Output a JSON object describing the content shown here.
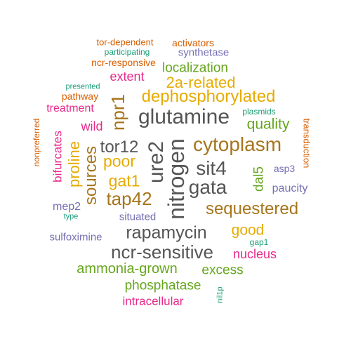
{
  "colors": {
    "green": "#1b9e77",
    "orange": "#d95f02",
    "purple": "#7570b3",
    "magenta": "#e7298a",
    "lime": "#66a61e",
    "gold": "#e6ab02",
    "brown": "#a6761d",
    "gray": "#555555"
  },
  "words": [
    {
      "id": "tor-dependent",
      "text": "tor-dependent",
      "color": "orange"
    },
    {
      "id": "activators",
      "text": "activators",
      "color": "orange"
    },
    {
      "id": "participating",
      "text": "participating",
      "color": "green"
    },
    {
      "id": "synthetase",
      "text": "synthetase",
      "color": "purple"
    },
    {
      "id": "ncr-responsive",
      "text": "ncr-responsive",
      "color": "orange"
    },
    {
      "id": "localization",
      "text": "localization",
      "color": "lime"
    },
    {
      "id": "extent",
      "text": "extent",
      "color": "magenta"
    },
    {
      "id": "2a-related",
      "text": "2a-related",
      "color": "gold"
    },
    {
      "id": "presented",
      "text": "presented",
      "color": "green"
    },
    {
      "id": "pathway",
      "text": "pathway",
      "color": "orange"
    },
    {
      "id": "dephosphorylated",
      "text": "dephosphorylated",
      "color": "gold"
    },
    {
      "id": "npr1",
      "text": "npr1",
      "color": "brown"
    },
    {
      "id": "nonpreferred",
      "text": "nonpreferred",
      "color": "orange"
    },
    {
      "id": "treatment",
      "text": "treatment",
      "color": "magenta"
    },
    {
      "id": "glutamine",
      "text": "glutamine",
      "color": "gray"
    },
    {
      "id": "plasmids",
      "text": "plasmids",
      "color": "green"
    },
    {
      "id": "transduction",
      "text": "transduction",
      "color": "orange"
    },
    {
      "id": "wild",
      "text": "wild",
      "color": "magenta"
    },
    {
      "id": "quality",
      "text": "quality",
      "color": "lime"
    },
    {
      "id": "bifurcates",
      "text": "bifurcates",
      "color": "magenta"
    },
    {
      "id": "proline",
      "text": "proline",
      "color": "gold"
    },
    {
      "id": "tor12",
      "text": "tor12",
      "color": "gray"
    },
    {
      "id": "ure2",
      "text": "ure2",
      "color": "gray"
    },
    {
      "id": "cytoplasm",
      "text": "cytoplasm",
      "color": "brown"
    },
    {
      "id": "poor",
      "text": "poor",
      "color": "gold"
    },
    {
      "id": "sources",
      "text": "sources",
      "color": "brown"
    },
    {
      "id": "nitrogen",
      "text": "nitrogen",
      "color": "gray"
    },
    {
      "id": "sit4",
      "text": "sit4",
      "color": "gray"
    },
    {
      "id": "dal5",
      "text": "dal5",
      "color": "lime"
    },
    {
      "id": "asp3",
      "text": "asp3",
      "color": "purple"
    },
    {
      "id": "gat1",
      "text": "gat1",
      "color": "gold"
    },
    {
      "id": "gata",
      "text": "gata",
      "color": "gray"
    },
    {
      "id": "paucity",
      "text": "paucity",
      "color": "purple"
    },
    {
      "id": "tap42",
      "text": "tap42",
      "color": "brown"
    },
    {
      "id": "mep2",
      "text": "mep2",
      "color": "purple"
    },
    {
      "id": "sequestered",
      "text": "sequestered",
      "color": "brown"
    },
    {
      "id": "type",
      "text": "type",
      "color": "green"
    },
    {
      "id": "situated",
      "text": "situated",
      "color": "purple"
    },
    {
      "id": "sulfoximine",
      "text": "sulfoximine",
      "color": "purple"
    },
    {
      "id": "rapamycin",
      "text": "rapamycin",
      "color": "gray"
    },
    {
      "id": "good",
      "text": "good",
      "color": "gold"
    },
    {
      "id": "gap1",
      "text": "gap1",
      "color": "green"
    },
    {
      "id": "ncr-sensitive",
      "text": "ncr-sensitive",
      "color": "gray"
    },
    {
      "id": "nucleus",
      "text": "nucleus",
      "color": "magenta"
    },
    {
      "id": "ammonia-grown",
      "text": "ammonia-grown",
      "color": "lime"
    },
    {
      "id": "excess",
      "text": "excess",
      "color": "lime"
    },
    {
      "id": "phosphatase",
      "text": "phosphatase",
      "color": "lime"
    },
    {
      "id": "nil1p",
      "text": "nil1p",
      "color": "green"
    },
    {
      "id": "intracellular",
      "text": "intracellular",
      "color": "magenta"
    }
  ]
}
